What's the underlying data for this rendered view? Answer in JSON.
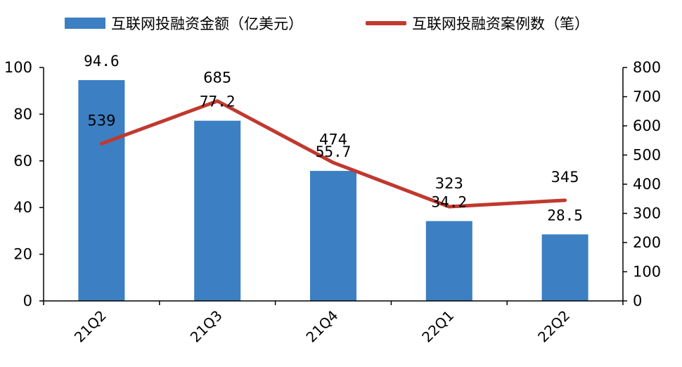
{
  "legend": {
    "bar_label": "互联网投融资金额（亿美元）",
    "line_label": "互联网投融资案例数（笔）"
  },
  "chart_data": {
    "type": "bar",
    "categories": [
      "21Q2",
      "21Q3",
      "21Q4",
      "22Q1",
      "22Q2"
    ],
    "series": [
      {
        "name": "互联网投融资金额（亿美元）",
        "type": "bar",
        "axis": "left",
        "values": [
          94.6,
          77.2,
          55.7,
          34.2,
          28.5
        ],
        "value_labels": [
          "94.6",
          "77.2",
          "55.7",
          "34.2",
          "28.5"
        ],
        "color": "#3c7fc2"
      },
      {
        "name": "互联网投融资案例数（笔）",
        "type": "line",
        "axis": "right",
        "values": [
          539,
          685,
          474,
          323,
          345
        ],
        "value_labels": [
          "539",
          "685",
          "474",
          "323",
          "345"
        ],
        "color": "#c0392f"
      }
    ],
    "y_left": {
      "range": [
        0,
        100
      ],
      "ticks": [
        "0",
        "20",
        "40",
        "60",
        "80",
        "100"
      ]
    },
    "y_right": {
      "range": [
        0,
        800
      ],
      "ticks": [
        "0",
        "100",
        "200",
        "300",
        "400",
        "500",
        "600",
        "700",
        "800"
      ]
    },
    "grid": false,
    "legend_position": "top"
  }
}
